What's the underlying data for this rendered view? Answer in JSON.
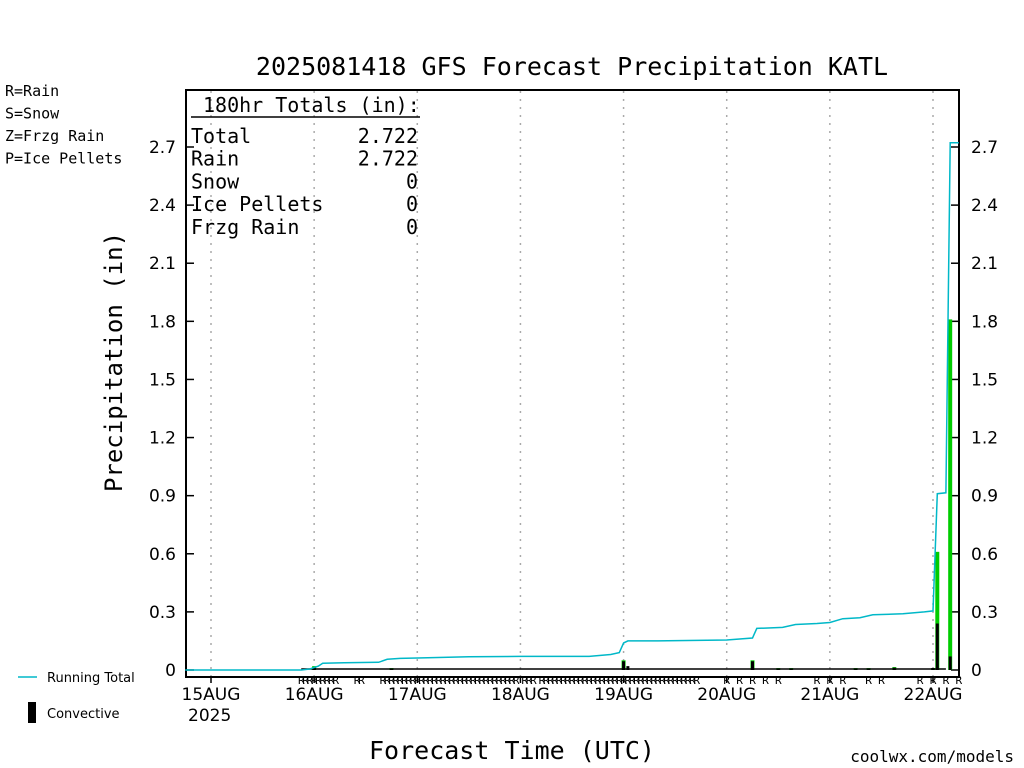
{
  "chart_data": {
    "type": "line",
    "title": "2025081418 GFS Forecast Precipitation KATL",
    "xlabel": "Forecast Time (UTC)",
    "ylabel": "Precipitation (in)",
    "ylim": [
      0,
      2.85
    ],
    "yticks": [
      "0",
      "0.3",
      "0.6",
      "0.9",
      "1.2",
      "1.5",
      "1.8",
      "2.1",
      "2.4",
      "2.7"
    ],
    "xticks": [
      {
        "label": "15AUG",
        "sub": "2025",
        "hour": 6
      },
      {
        "label": "16AUG",
        "hour": 30
      },
      {
        "label": "17AUG",
        "hour": 54
      },
      {
        "label": "18AUG",
        "hour": 78
      },
      {
        "label": "19AUG",
        "hour": 102
      },
      {
        "label": "20AUG",
        "hour": 126
      },
      {
        "label": "21AUG",
        "hour": 150
      },
      {
        "label": "22AUG",
        "hour": 174
      }
    ],
    "xrange_hours": [
      0,
      180
    ],
    "grid": "vertical dotted at day boundaries",
    "legend_precip_types": [
      {
        "label": "R=Rain",
        "color": "#00cc00"
      },
      {
        "label": "S=Snow",
        "color": "#3333ff"
      },
      {
        "label": "Z=Frzg Rain",
        "color": "#ff8800"
      },
      {
        "label": "P=Ice Pellets",
        "color": "#ff0099"
      }
    ],
    "legend_series": [
      {
        "label": "Running Total",
        "color": "#00b8c8"
      },
      {
        "label": "Convective",
        "color": "#000000"
      }
    ],
    "totals_box": {
      "heading": "180hr Totals (in):",
      "rows": [
        {
          "label": "Total",
          "value": "2.722"
        },
        {
          "label": "Rain",
          "value": "2.722"
        },
        {
          "label": "Snow",
          "value": "0"
        },
        {
          "label": "Ice Pellets",
          "value": "0"
        },
        {
          "label": "Frzg Rain",
          "value": "0"
        }
      ]
    },
    "series": [
      {
        "name": "Running Total",
        "color": "#00b8c8",
        "points": [
          [
            0,
            0
          ],
          [
            27,
            0
          ],
          [
            29,
            0.005
          ],
          [
            31,
            0.02
          ],
          [
            32,
            0.035
          ],
          [
            37,
            0.037
          ],
          [
            45,
            0.04
          ],
          [
            47,
            0.055
          ],
          [
            50,
            0.06
          ],
          [
            54,
            0.062
          ],
          [
            60,
            0.065
          ],
          [
            66,
            0.068
          ],
          [
            78,
            0.07
          ],
          [
            90,
            0.07
          ],
          [
            94,
            0.07
          ],
          [
            99,
            0.08
          ],
          [
            101,
            0.09
          ],
          [
            102,
            0.14
          ],
          [
            103,
            0.15
          ],
          [
            110,
            0.15
          ],
          [
            126,
            0.155
          ],
          [
            129,
            0.16
          ],
          [
            132,
            0.165
          ],
          [
            133,
            0.215
          ],
          [
            139,
            0.22
          ],
          [
            142,
            0.235
          ],
          [
            147,
            0.24
          ],
          [
            150,
            0.245
          ],
          [
            153,
            0.265
          ],
          [
            157,
            0.27
          ],
          [
            160,
            0.285
          ],
          [
            167,
            0.29
          ],
          [
            172,
            0.3
          ],
          [
            174,
            0.305
          ],
          [
            175,
            0.91
          ],
          [
            177,
            0.915
          ],
          [
            178,
            2.722
          ],
          [
            180,
            2.722
          ]
        ]
      },
      {
        "name": "Precipitation",
        "color": "#00cc00",
        "bars": [
          {
            "hour": 30,
            "value": 0.02
          },
          {
            "hour": 48,
            "value": 0.01
          },
          {
            "hour": 102,
            "value": 0.05
          },
          {
            "hour": 132,
            "value": 0.05
          },
          {
            "hour": 138,
            "value": 0.01
          },
          {
            "hour": 141,
            "value": 0.01
          },
          {
            "hour": 156,
            "value": 0.01
          },
          {
            "hour": 159,
            "value": 0.01
          },
          {
            "hour": 165,
            "value": 0.015
          },
          {
            "hour": 174,
            "value": 0.01
          },
          {
            "hour": 175,
            "value": 0.61
          },
          {
            "hour": 178,
            "value": 1.81
          }
        ]
      },
      {
        "name": "Convective",
        "color": "#000000",
        "bars": [
          {
            "hour": 30,
            "value": 0.015
          },
          {
            "hour": 48,
            "value": 0.008
          },
          {
            "hour": 102,
            "value": 0.045
          },
          {
            "hour": 103,
            "value": 0.02
          },
          {
            "hour": 132,
            "value": 0.045
          },
          {
            "hour": 138,
            "value": 0.008
          },
          {
            "hour": 141,
            "value": 0.008
          },
          {
            "hour": 156,
            "value": 0.008
          },
          {
            "hour": 159,
            "value": 0.008
          },
          {
            "hour": 165,
            "value": 0.012
          },
          {
            "hour": 174,
            "value": 0.01
          },
          {
            "hour": 175,
            "value": 0.24
          },
          {
            "hour": 178,
            "value": 0.07
          }
        ]
      }
    ],
    "precip_type_marks": {
      "label": "R",
      "color": "#00cc00",
      "hours": [
        27,
        28,
        29,
        30,
        31,
        32,
        33,
        34,
        35,
        40,
        41,
        46,
        47,
        48,
        49,
        50,
        51,
        52,
        53,
        54,
        55,
        56,
        57,
        58,
        59,
        60,
        61,
        62,
        63,
        64,
        65,
        66,
        67,
        68,
        69,
        70,
        71,
        72,
        73,
        74,
        75,
        76,
        77,
        79,
        80,
        81,
        83,
        84,
        85,
        86,
        87,
        88,
        89,
        90,
        91,
        92,
        93,
        94,
        95,
        96,
        97,
        98,
        99,
        100,
        101,
        102,
        103,
        104,
        105,
        106,
        107,
        108,
        109,
        110,
        111,
        112,
        113,
        114,
        115,
        116,
        117,
        118,
        119,
        126,
        129,
        132,
        135,
        138,
        147,
        150,
        153,
        159,
        162,
        171,
        174,
        177,
        180
      ]
    },
    "credit": "coolwx.com/models"
  }
}
